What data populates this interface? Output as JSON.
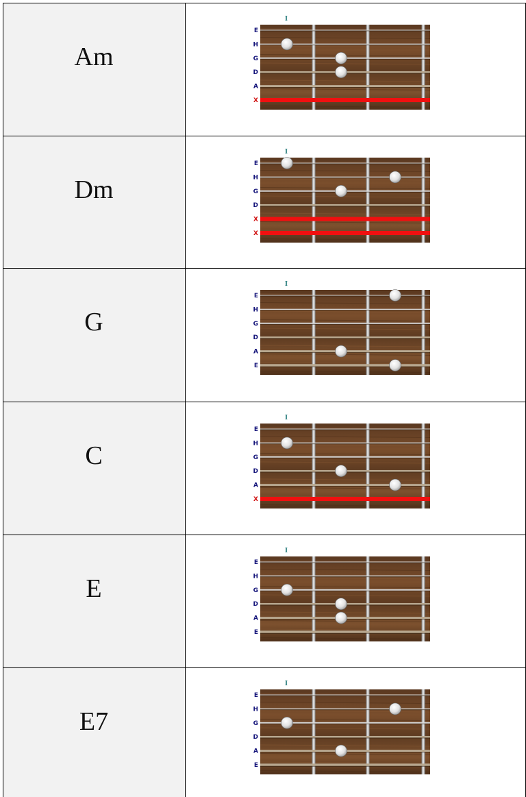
{
  "table": {
    "rows": [
      {
        "chord": "Am",
        "fret": "I",
        "strings": [
          "E",
          "H",
          "G",
          "D",
          "A",
          "X"
        ]
      },
      {
        "chord": "Dm",
        "fret": "I",
        "strings": [
          "E",
          "H",
          "G",
          "D",
          "X",
          "X"
        ]
      },
      {
        "chord": "G",
        "fret": "I",
        "strings": [
          "E",
          "H",
          "G",
          "D",
          "A",
          "E"
        ]
      },
      {
        "chord": "C",
        "fret": "I",
        "strings": [
          "E",
          "H",
          "G",
          "D",
          "A",
          "X"
        ]
      },
      {
        "chord": "E",
        "fret": "I",
        "strings": [
          "E",
          "H",
          "G",
          "D",
          "A",
          "E"
        ]
      },
      {
        "chord": "E7",
        "fret": "I",
        "strings": [
          "E",
          "H",
          "G",
          "D",
          "A",
          "E"
        ]
      }
    ]
  }
}
